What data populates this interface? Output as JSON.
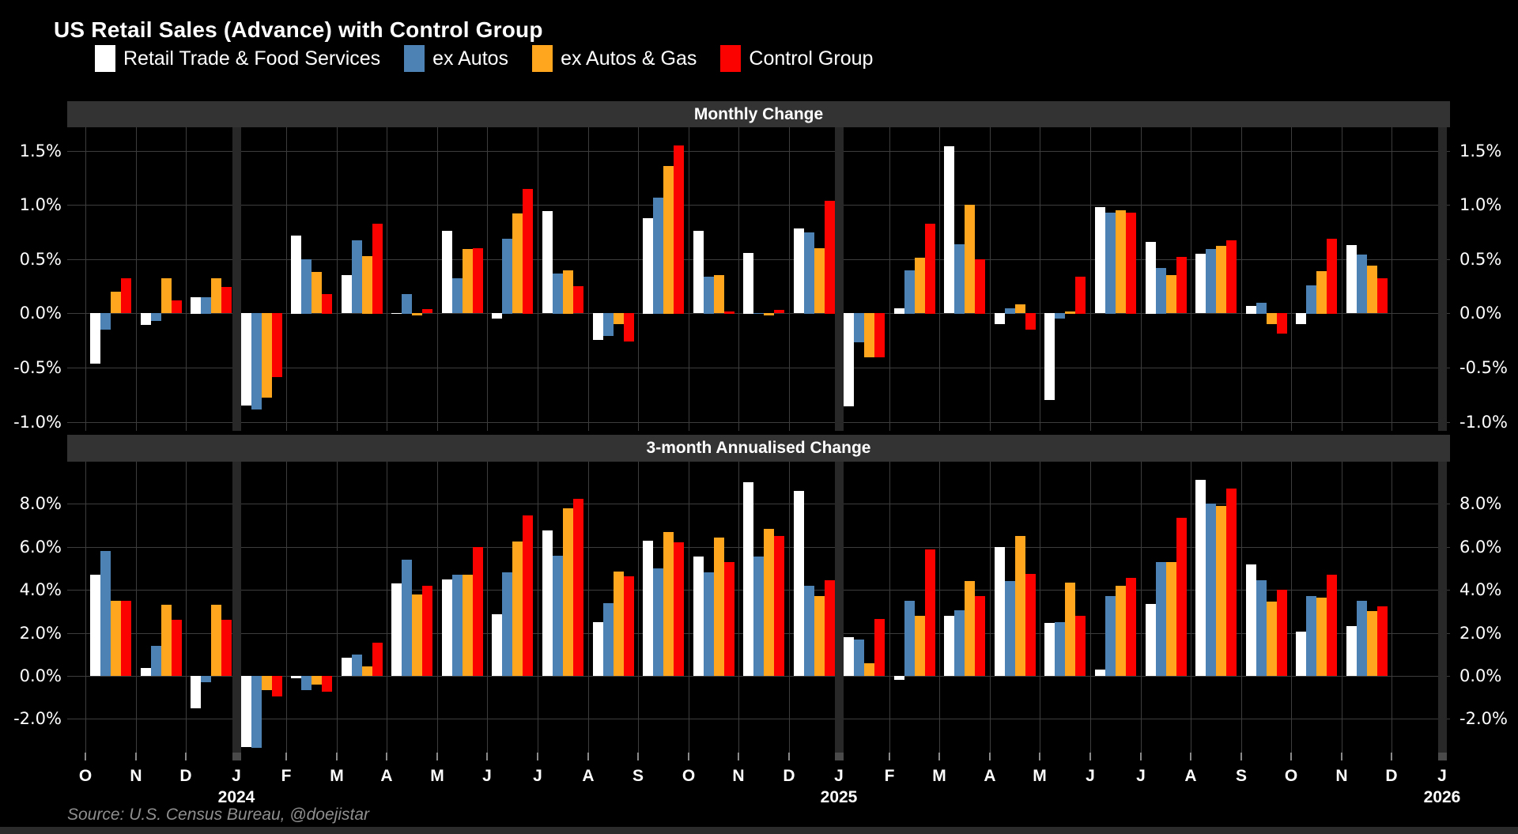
{
  "title": "US Retail Sales (Advance) with Control Group",
  "source_note": "Source: U.S. Census Bureau, @doejistar",
  "colors": {
    "background": "#000000",
    "panel_header_bg": "#333333",
    "grid": "#3d3d3d",
    "separator": "#282828",
    "axis_text": "#ffffff",
    "source_text": "#8f8f8f",
    "series_white": "#ffffff",
    "series_blue": "#4d82b4",
    "series_orange": "#ffa51e",
    "series_red": "#fb0200"
  },
  "legend": {
    "items": [
      {
        "label": "Retail Trade & Food Services",
        "color_key": "series_white"
      },
      {
        "label": "ex Autos",
        "color_key": "series_blue"
      },
      {
        "label": "ex Autos & Gas",
        "color_key": "series_orange"
      },
      {
        "label": "Control Group",
        "color_key": "series_red"
      }
    ]
  },
  "chart_data": [
    {
      "type": "bar",
      "title": "Monthly Change",
      "categories": [
        "O",
        "N",
        "D",
        "J",
        "F",
        "M",
        "A",
        "M",
        "J",
        "J",
        "A",
        "S",
        "O",
        "N",
        "D",
        "J",
        "F",
        "M",
        "A",
        "M",
        "J",
        "J",
        "A",
        "S",
        "O",
        "N",
        "D",
        "J"
      ],
      "year_labels": [
        {
          "index": 3,
          "label": "2024"
        },
        {
          "index": 15,
          "label": "2025"
        },
        {
          "index": 27,
          "label": "2026"
        }
      ],
      "separator_indices": [
        3,
        15,
        27
      ],
      "ylim": [
        -1.1,
        1.72
      ],
      "grid": true,
      "legend_position": "top",
      "yticks": [
        {
          "value": 1.5,
          "label": "1.5%"
        },
        {
          "value": 1.0,
          "label": "1.0%"
        },
        {
          "value": 0.5,
          "label": "0.5%"
        },
        {
          "value": 0.0,
          "label": "0.0%"
        },
        {
          "value": -0.5,
          "label": "-0.5%"
        },
        {
          "value": -1.0,
          "label": "-1.0%"
        }
      ],
      "series": [
        {
          "name": "Retail Trade & Food Services",
          "color_key": "series_white",
          "values": [
            -0.47,
            -0.11,
            0.15,
            -0.85,
            0.72,
            0.35,
            -0.01,
            0.76,
            -0.05,
            0.94,
            -0.25,
            0.88,
            0.76,
            0.56,
            0.78,
            -0.86,
            0.05,
            1.54,
            -0.1,
            -0.8,
            0.98,
            0.66,
            0.55,
            0.07,
            -0.1,
            0.63,
            null,
            null
          ]
        },
        {
          "name": "ex Autos",
          "color_key": "series_blue",
          "values": [
            -0.15,
            -0.07,
            0.15,
            -0.89,
            0.5,
            0.67,
            0.18,
            0.32,
            0.69,
            0.37,
            -0.21,
            1.07,
            0.34,
            -0.01,
            0.75,
            -0.27,
            0.4,
            0.64,
            0.05,
            -0.05,
            0.93,
            0.42,
            0.59,
            0.1,
            0.26,
            0.54,
            null,
            null
          ]
        },
        {
          "name": "ex Autos & Gas",
          "color_key": "series_orange",
          "values": [
            0.2,
            0.32,
            0.32,
            -0.78,
            0.38,
            0.53,
            -0.02,
            0.59,
            0.92,
            0.4,
            -0.1,
            1.36,
            0.35,
            -0.02,
            0.6,
            -0.41,
            0.51,
            1.0,
            0.08,
            0.02,
            0.95,
            0.35,
            0.62,
            -0.1,
            0.39,
            0.44,
            null,
            null
          ]
        },
        {
          "name": "Control Group",
          "color_key": "series_red",
          "values": [
            0.32,
            0.12,
            0.24,
            -0.59,
            0.18,
            0.83,
            0.04,
            0.6,
            1.15,
            0.25,
            -0.26,
            1.55,
            0.02,
            0.03,
            1.04,
            -0.41,
            0.83,
            0.5,
            -0.15,
            0.34,
            0.93,
            0.52,
            0.67,
            -0.19,
            0.69,
            0.32,
            null,
            null
          ]
        }
      ]
    },
    {
      "type": "bar",
      "title": "3-month Annualised Change",
      "categories": [
        "O",
        "N",
        "D",
        "J",
        "F",
        "M",
        "A",
        "M",
        "J",
        "J",
        "A",
        "S",
        "O",
        "N",
        "D",
        "J",
        "F",
        "M",
        "A",
        "M",
        "J",
        "J",
        "A",
        "S",
        "O",
        "N",
        "D",
        "J"
      ],
      "year_labels": [
        {
          "index": 3,
          "label": "2024"
        },
        {
          "index": 15,
          "label": "2025"
        },
        {
          "index": 27,
          "label": "2026"
        }
      ],
      "separator_indices": [
        3,
        15,
        27
      ],
      "ylim": [
        -3.8,
        9.9
      ],
      "grid": true,
      "yticks": [
        {
          "value": 8.0,
          "label": "8.0%"
        },
        {
          "value": 6.0,
          "label": "6.0%"
        },
        {
          "value": 4.0,
          "label": "4.0%"
        },
        {
          "value": 2.0,
          "label": "2.0%"
        },
        {
          "value": 0.0,
          "label": "0.0%"
        },
        {
          "value": -2.0,
          "label": "-2.0%"
        }
      ],
      "series": [
        {
          "name": "Retail Trade & Food Services",
          "color_key": "series_white",
          "values": [
            4.7,
            0.35,
            -1.5,
            -3.3,
            -0.1,
            0.85,
            4.3,
            4.5,
            2.85,
            6.75,
            2.5,
            6.3,
            5.55,
            9.0,
            8.6,
            1.8,
            -0.2,
            2.8,
            6.0,
            2.45,
            0.3,
            3.35,
            9.1,
            5.2,
            2.05,
            2.3,
            null,
            null
          ]
        },
        {
          "name": "ex Autos",
          "color_key": "series_blue",
          "values": [
            5.8,
            1.4,
            -0.3,
            -3.35,
            -0.65,
            1.0,
            5.4,
            4.7,
            4.8,
            5.6,
            3.4,
            5.0,
            4.8,
            5.55,
            4.2,
            1.7,
            3.5,
            3.05,
            4.4,
            2.5,
            3.7,
            5.3,
            8.0,
            4.45,
            3.7,
            3.5,
            null,
            null
          ]
        },
        {
          "name": "ex Autos & Gas",
          "color_key": "series_orange",
          "values": [
            3.5,
            3.3,
            3.3,
            -0.65,
            -0.4,
            0.45,
            3.8,
            4.7,
            6.25,
            7.8,
            4.85,
            6.7,
            6.45,
            6.85,
            3.7,
            0.6,
            2.8,
            4.4,
            6.5,
            4.35,
            4.2,
            5.3,
            7.9,
            3.45,
            3.65,
            3.0,
            null,
            null
          ]
        },
        {
          "name": "Control Group",
          "color_key": "series_red",
          "values": [
            3.5,
            2.6,
            2.6,
            -0.95,
            -0.75,
            1.55,
            4.2,
            6.0,
            7.45,
            8.25,
            4.65,
            6.2,
            5.3,
            6.5,
            4.45,
            2.65,
            5.9,
            3.7,
            4.75,
            2.8,
            4.55,
            7.35,
            8.7,
            4.0,
            4.7,
            3.25,
            null,
            null
          ]
        }
      ]
    }
  ]
}
